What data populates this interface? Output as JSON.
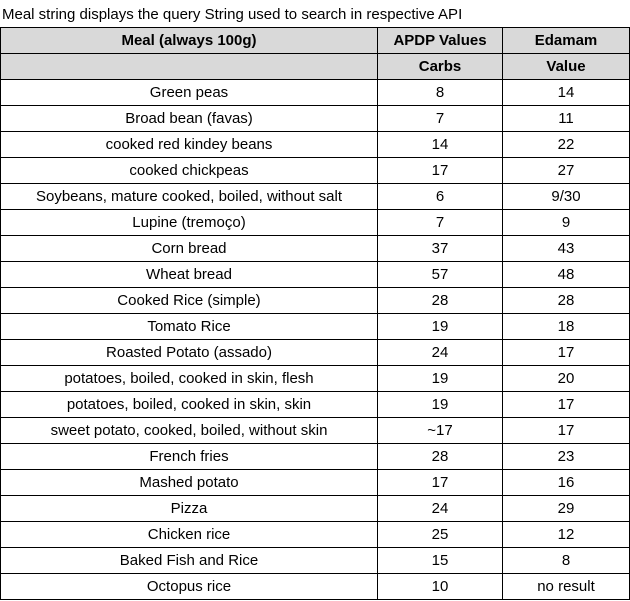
{
  "caption": "Meal string displays the query String used to search in respective API",
  "table": {
    "header_row1": [
      "Meal  (always 100g)",
      "APDP Values",
      "Edamam"
    ],
    "header_row2": [
      "",
      "Carbs",
      "Value"
    ],
    "rows": [
      {
        "meal": "Green peas",
        "apdp": "8",
        "edamam": "14"
      },
      {
        "meal": "Broad bean (favas)",
        "apdp": "7",
        "edamam": "11"
      },
      {
        "meal": "cooked red kindey beans",
        "apdp": "14",
        "edamam": "22"
      },
      {
        "meal": "cooked chickpeas",
        "apdp": "17",
        "edamam": "27"
      },
      {
        "meal": "Soybeans, mature cooked, boiled, without salt",
        "apdp": "6",
        "edamam": "9/30"
      },
      {
        "meal": "Lupine (tremoço)",
        "apdp": "7",
        "edamam": "9"
      },
      {
        "meal": "Corn bread",
        "apdp": "37",
        "edamam": "43"
      },
      {
        "meal": "Wheat bread",
        "apdp": "57",
        "edamam": "48"
      },
      {
        "meal": "Cooked Rice (simple)",
        "apdp": "28",
        "edamam": "28"
      },
      {
        "meal": "Tomato Rice",
        "apdp": "19",
        "edamam": "18"
      },
      {
        "meal": "Roasted Potato (assado)",
        "apdp": "24",
        "edamam": "17"
      },
      {
        "meal": "potatoes, boiled, cooked in skin, flesh",
        "apdp": "19",
        "edamam": "20"
      },
      {
        "meal": "potatoes, boiled, cooked in skin, skin",
        "apdp": "19",
        "edamam": "17"
      },
      {
        "meal": "sweet potato, cooked, boiled, without skin",
        "apdp": "~17",
        "edamam": "17"
      },
      {
        "meal": "French fries",
        "apdp": "28",
        "edamam": "23"
      },
      {
        "meal": "Mashed potato",
        "apdp": "17",
        "edamam": "16"
      },
      {
        "meal": "Pizza",
        "apdp": "24",
        "edamam": "29"
      },
      {
        "meal": "Chicken rice",
        "apdp": "25",
        "edamam": "12"
      },
      {
        "meal": "Baked Fish and Rice",
        "apdp": "15",
        "edamam": "8"
      },
      {
        "meal": "Octopus rice",
        "apdp": "10",
        "edamam": "no result"
      }
    ]
  }
}
